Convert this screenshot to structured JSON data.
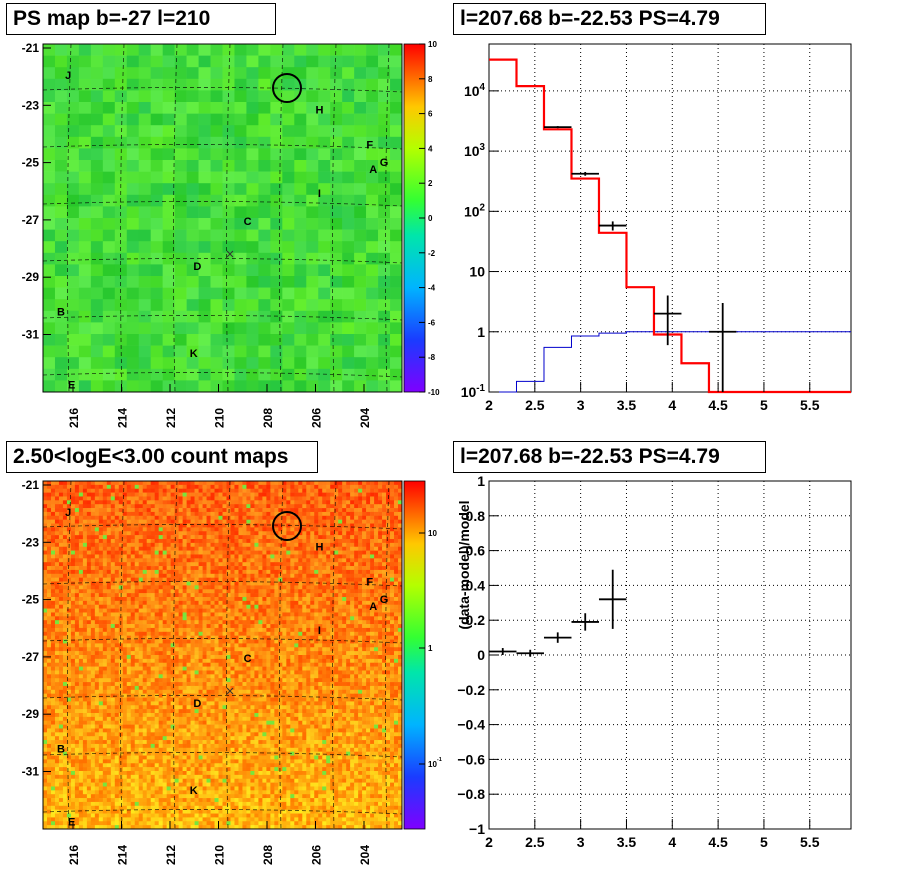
{
  "titles": {
    "map_top": "PS map b=-27 l=210",
    "spec_top": "l=207.68 b=-22.53 PS=4.79",
    "map_bottom": "2.50<logE<3.00 count maps",
    "spec_bottom": "l=207.68 b=-22.53 PS=4.79"
  },
  "colors": {
    "model_red": "#ff0000",
    "data_black": "#000000",
    "bkg_blue": "#0000cc",
    "frame": "#000000"
  },
  "chart_data": [
    {
      "type": "heatmap",
      "title": "PS map b=-27 l=210",
      "xlabel": "",
      "ylabel": "",
      "x_ticks": [
        "216",
        "214",
        "212",
        "210",
        "208",
        "206",
        "204"
      ],
      "y_ticks": [
        "-21",
        "-23",
        "-25",
        "-27",
        "-29",
        "-31"
      ],
      "colorbar_ticks": [
        "10",
        "8",
        "6",
        "4",
        "2",
        "0",
        "-2",
        "-4",
        "-6",
        "-8",
        "-10"
      ],
      "zlim": [
        -10,
        10
      ],
      "source_labels": [
        "J",
        "H",
        "F",
        "A",
        "G",
        "I",
        "C",
        "D",
        "B",
        "K",
        "E"
      ],
      "marker": {
        "type": "circle",
        "l": 207.68,
        "b": -22.53
      }
    },
    {
      "type": "line",
      "title": "l=207.68 b=-22.53 PS=4.79",
      "xlabel": "",
      "ylabel": "",
      "x_ticks": [
        "2",
        "2.5",
        "3",
        "3.5",
        "4",
        "4.5",
        "5",
        "5.5"
      ],
      "y_ticks": [
        "10^{-1}",
        "1",
        "10",
        "10^{2}",
        "10^{3}",
        "10^{4}"
      ],
      "xlim": [
        2.0,
        5.95
      ],
      "ylim": [
        0.1,
        60000
      ],
      "y_scale": "log",
      "grid": true,
      "series": [
        {
          "edges": [
            2.0,
            2.3,
            2.6,
            2.9,
            3.2,
            3.5,
            3.8,
            4.1,
            4.4,
            5.95
          ],
          "values": [
            33000,
            12000,
            2300,
            350,
            44,
            5.5,
            0.9,
            0.3,
            0.1
          ]
        },
        {
          "edges": [
            2.0,
            2.3,
            2.6,
            2.9,
            3.2,
            3.5,
            3.8,
            4.1,
            4.4,
            5.95
          ],
          "values": [
            0.1,
            0.15,
            0.55,
            0.85,
            0.95,
            1.0,
            1.0,
            1.0,
            1.0
          ]
        },
        {
          "points": [
            {
              "x": 2.75,
              "xerr": 0.15,
              "y": 2500,
              "ylo": 2400,
              "yhi": 2600
            },
            {
              "x": 3.05,
              "xerr": 0.15,
              "y": 420,
              "ylo": 390,
              "yhi": 450
            },
            {
              "x": 3.35,
              "xerr": 0.15,
              "y": 58,
              "ylo": 48,
              "yhi": 68
            },
            {
              "x": 3.95,
              "xerr": 0.15,
              "y": 2,
              "ylo": 0.6,
              "yhi": 4
            },
            {
              "x": 4.55,
              "xerr": 0.15,
              "y": 1,
              "ylo": 0.1,
              "yhi": 3
            }
          ]
        }
      ]
    },
    {
      "type": "heatmap",
      "title": "2.50<logE<3.00 count maps",
      "xlabel": "",
      "ylabel": "",
      "x_ticks": [
        "216",
        "214",
        "212",
        "210",
        "208",
        "206",
        "204"
      ],
      "y_ticks": [
        "-21",
        "-23",
        "-25",
        "-27",
        "-29",
        "-31"
      ],
      "colorbar_ticks": [
        "10",
        "1",
        "10^{-1}"
      ],
      "z_scale": "log",
      "source_labels": [
        "J",
        "H",
        "F",
        "A",
        "G",
        "I",
        "C",
        "D",
        "B",
        "K",
        "E"
      ],
      "marker": {
        "type": "circle",
        "l": 207.68,
        "b": -22.53
      }
    },
    {
      "type": "scatter",
      "title": "l=207.68 b=-22.53 PS=4.79",
      "xlabel": "",
      "ylabel": "(data-model)/model",
      "x_ticks": [
        "2",
        "2.5",
        "3",
        "3.5",
        "4",
        "4.5",
        "5",
        "5.5"
      ],
      "y_ticks": [
        "1",
        "0.8",
        "0.6",
        "0.4",
        "0.2",
        "0",
        "−0.2",
        "−0.4",
        "−0.6",
        "−0.8",
        "−1"
      ],
      "xlim": [
        2.0,
        5.95
      ],
      "ylim": [
        -1,
        1
      ],
      "grid": true,
      "points": [
        {
          "x": 2.15,
          "xerr": 0.15,
          "y": 0.02,
          "yerr": 0.02
        },
        {
          "x": 2.45,
          "xerr": 0.15,
          "y": 0.01,
          "yerr": 0.02
        },
        {
          "x": 2.75,
          "xerr": 0.15,
          "y": 0.1,
          "yerr": 0.03
        },
        {
          "x": 3.05,
          "xerr": 0.15,
          "y": 0.19,
          "yerr": 0.05
        },
        {
          "x": 3.35,
          "xerr": 0.15,
          "y": 0.32,
          "yerr": 0.17
        }
      ]
    }
  ]
}
